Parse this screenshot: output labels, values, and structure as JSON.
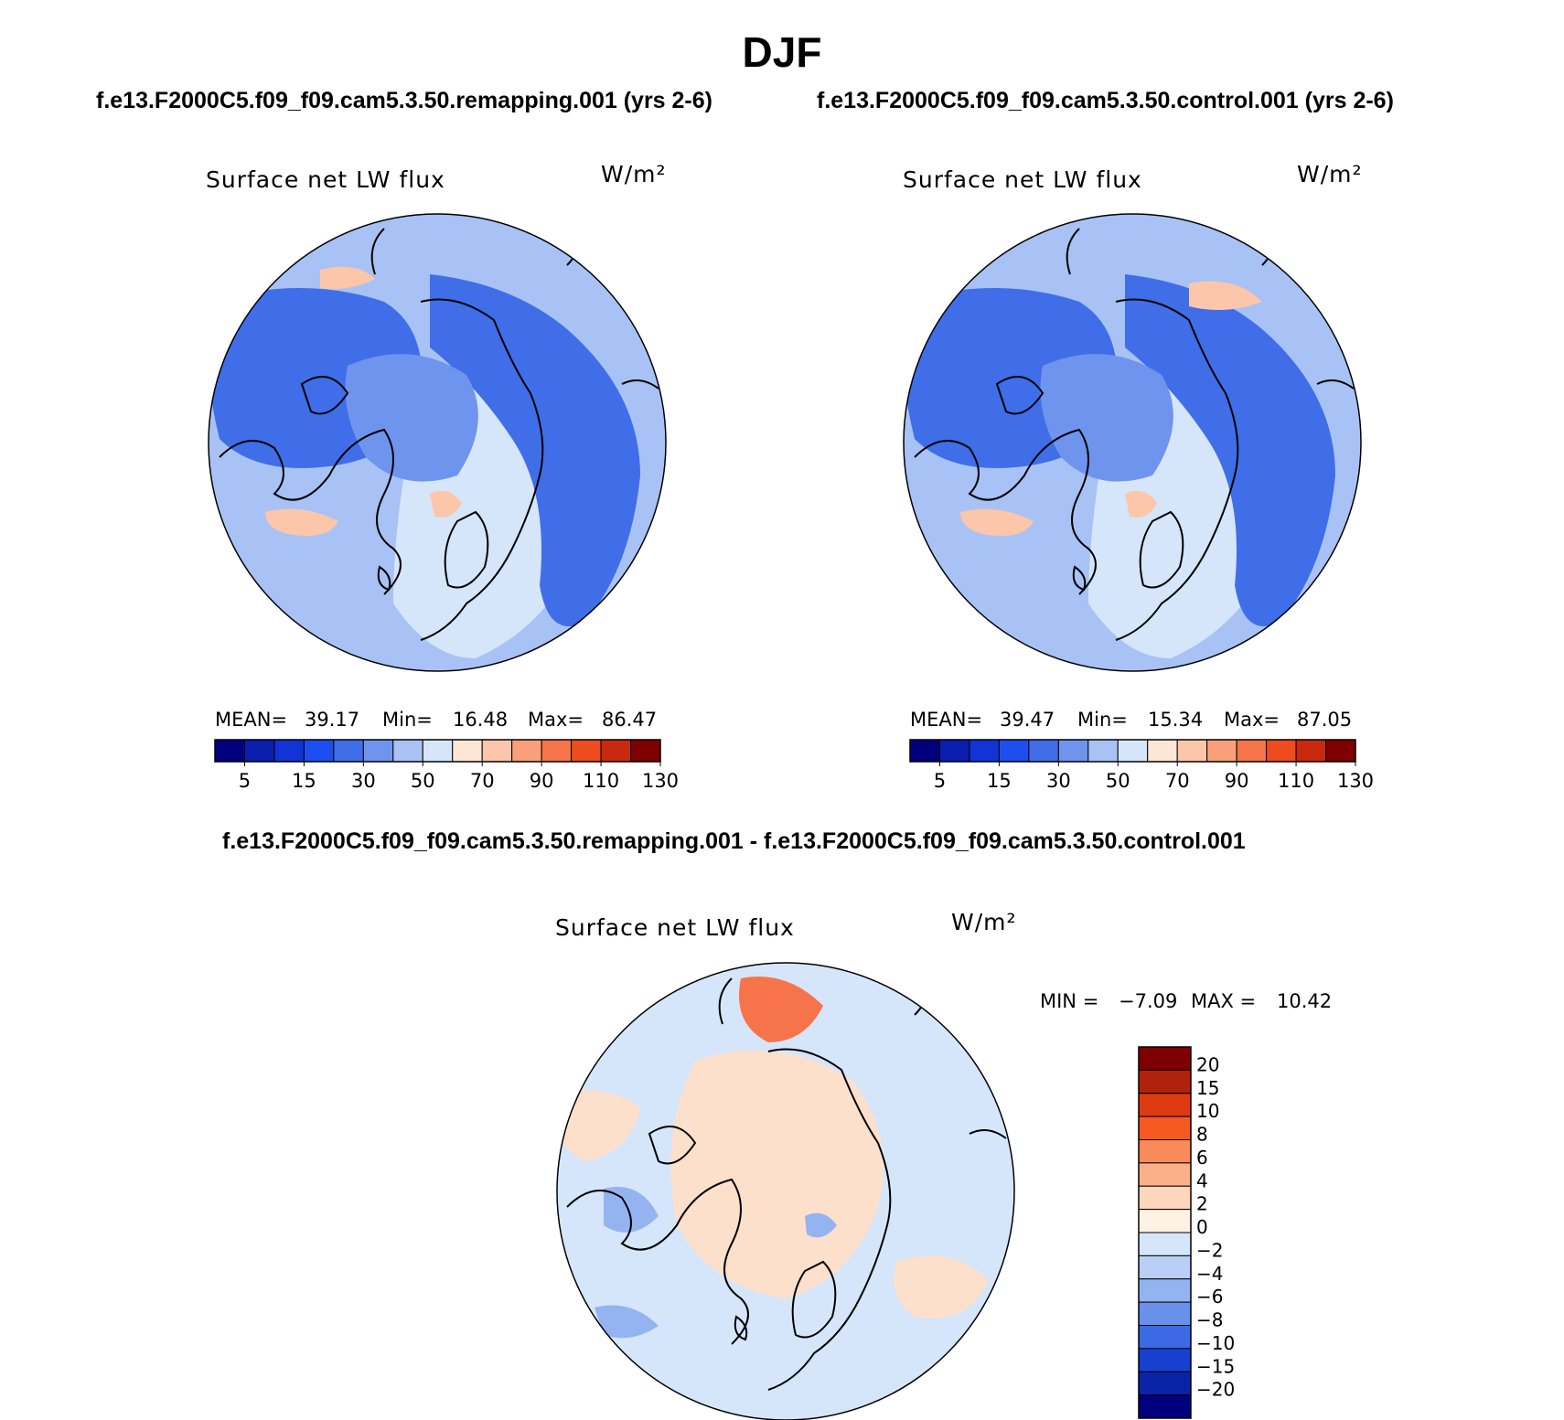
{
  "title": "DJF",
  "panels": {
    "left_case_title": "f.e13.F2000C5.f09_f09.cam5.3.50.remapping.001 (yrs 2-6)",
    "right_case_title": "f.e13.F2000C5.f09_f09.cam5.3.50.control.001 (yrs 2-6)",
    "diff_title": "f.e13.F2000C5.f09_f09.cam5.3.50.remapping.001 - f.e13.F2000C5.f09_f09.cam5.3.50.control.001"
  },
  "chart_data": [
    {
      "type": "heatmap",
      "projection": "polar stereographic (north)",
      "title": "Surface net LW flux",
      "units": "W/m²",
      "stats": {
        "mean_label": "MEAN=",
        "mean": "39.17",
        "min_label": "Min=",
        "min": "16.48",
        "max_label": "Max=",
        "max": "86.47"
      },
      "colorbar_levels": [
        5,
        10,
        15,
        20,
        30,
        40,
        50,
        60,
        70,
        80,
        90,
        100,
        110,
        120,
        130
      ],
      "colorbar_tick_labels": [
        "5",
        "15",
        "30",
        "50",
        "70",
        "90",
        "110",
        "130"
      ]
    },
    {
      "type": "heatmap",
      "projection": "polar stereographic (north)",
      "title": "Surface net LW flux",
      "units": "W/m²",
      "stats": {
        "mean_label": "MEAN=",
        "mean": "39.47",
        "min_label": "Min=",
        "min": "15.34",
        "max_label": "Max=",
        "max": "87.05"
      },
      "colorbar_levels": [
        5,
        10,
        15,
        20,
        30,
        40,
        50,
        60,
        70,
        80,
        90,
        100,
        110,
        120,
        130
      ],
      "colorbar_tick_labels": [
        "5",
        "15",
        "30",
        "50",
        "70",
        "90",
        "110",
        "130"
      ]
    },
    {
      "type": "heatmap",
      "projection": "polar stereographic (north)",
      "title": "Surface net LW flux",
      "units": "W/m²",
      "stats": {
        "min_label": "MIN =",
        "min": "−7.09",
        "max_label": "MAX =",
        "max": "10.42"
      },
      "colorbar_levels": [
        20,
        15,
        10,
        8,
        6,
        4,
        2,
        0,
        -2,
        -4,
        -6,
        -8,
        -10,
        -15,
        -20
      ],
      "colorbar_tick_labels": [
        "20",
        "15",
        "10",
        "8",
        "6",
        "4",
        "2",
        "0",
        "−2",
        "−4",
        "−6",
        "−8",
        "−10",
        "−15",
        "−20"
      ]
    }
  ],
  "colors": {
    "abs_scale": [
      "#00007f",
      "#0a1fb0",
      "#1233d6",
      "#1f4ef0",
      "#3f6ee8",
      "#6f94ee",
      "#a9c2f5",
      "#d6e6fa",
      "#fde6d6",
      "#fbc6aa",
      "#f9a07a",
      "#f7744b",
      "#ee4b1f",
      "#c8290f",
      "#7f0000"
    ],
    "diff_scale_top_to_bottom": [
      "#7f0000",
      "#b0220c",
      "#de3a10",
      "#f75a20",
      "#f98a5a",
      "#fbb08a",
      "#fdd6bd",
      "#fdf1e3",
      "#d6e6fa",
      "#b9cff6",
      "#94b3f1",
      "#6a91ea",
      "#3c69e4",
      "#1740d0",
      "#0a24a8",
      "#00007f"
    ],
    "map_abs_base": "#6f94ee",
    "map_abs_ocean_dark": "#3f6ee8",
    "map_abs_light": "#a9c2f5",
    "map_abs_pale": "#d6e6fa",
    "map_abs_warm": "#fbc6aa",
    "map_diff_base": "#d6e6fa",
    "map_diff_warm": "#fde0cc",
    "map_diff_hot": "#f7744b",
    "map_diff_cool": "#94b3f1",
    "coast": "#000000"
  }
}
